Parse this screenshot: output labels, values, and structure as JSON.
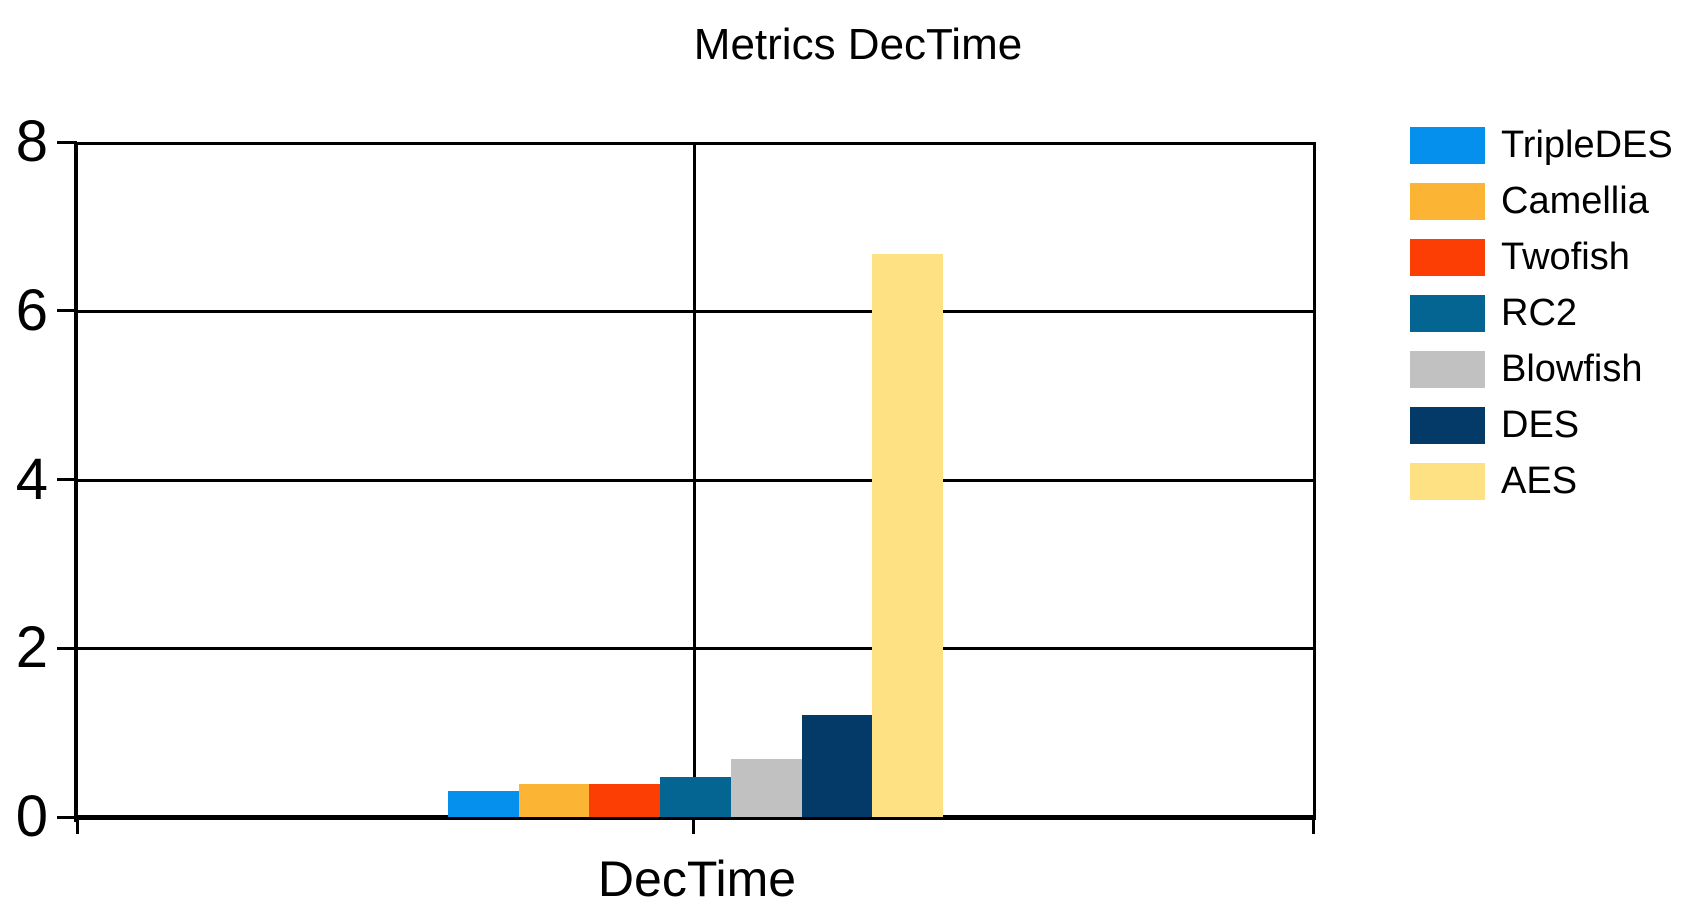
{
  "title": "Metrics DecTime",
  "chart_data": {
    "type": "bar",
    "title": "Metrics DecTime",
    "categories": [
      "DecTime"
    ],
    "xlabel": "DecTime",
    "ylabel": "",
    "ylim": [
      0,
      8
    ],
    "yticks": [
      8,
      6,
      4,
      2,
      0
    ],
    "grid": true,
    "legend_position": "right",
    "series": [
      {
        "name": "TripleDES",
        "color": "#0590EE",
        "values": [
          0.31
        ]
      },
      {
        "name": "Camellia",
        "color": "#FCB434",
        "values": [
          0.39
        ]
      },
      {
        "name": "Twofish",
        "color": "#FC3E04",
        "values": [
          0.39
        ]
      },
      {
        "name": "RC2",
        "color": "#046593",
        "values": [
          0.47
        ]
      },
      {
        "name": "Blowfish",
        "color": "#C1C1C1",
        "values": [
          0.69
        ]
      },
      {
        "name": "DES",
        "color": "#043A68",
        "values": [
          1.21
        ]
      },
      {
        "name": "AES",
        "color": "#FDE182",
        "values": [
          6.67
        ]
      }
    ]
  }
}
